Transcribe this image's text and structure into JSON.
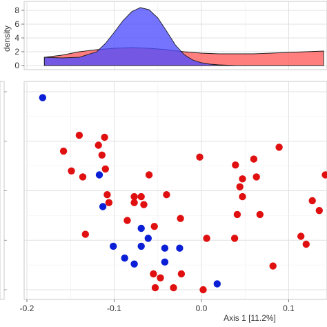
{
  "chart_data": [
    {
      "type": "area",
      "ylabel": "density",
      "y_ticks": [
        "0",
        "2",
        "4",
        "6",
        "8"
      ],
      "ylim": [
        0,
        9
      ],
      "xlim": [
        -0.23,
        0.14
      ],
      "grid": true,
      "series": [
        {
          "color": "#ff5a5a",
          "x": [
            -0.18,
            -0.16,
            -0.14,
            -0.12,
            -0.1,
            -0.08,
            -0.06,
            -0.04,
            -0.02,
            0.0,
            0.02,
            0.04,
            0.06,
            0.08,
            0.1,
            0.12,
            0.14
          ],
          "values": [
            1.2,
            1.5,
            2.0,
            2.3,
            2.5,
            2.6,
            2.5,
            2.3,
            2.0,
            1.8,
            1.7,
            1.7,
            1.7,
            1.8,
            1.9,
            2.0,
            2.1
          ]
        },
        {
          "color": "#4d4dff",
          "x": [
            -0.18,
            -0.16,
            -0.14,
            -0.12,
            -0.11,
            -0.1,
            -0.09,
            -0.08,
            -0.07,
            -0.06,
            -0.05,
            -0.04,
            -0.03,
            -0.02,
            -0.01,
            0.0,
            0.01,
            0.02,
            0.03,
            0.04
          ],
          "values": [
            1.2,
            1.1,
            1.2,
            2.0,
            3.2,
            4.8,
            6.5,
            7.8,
            8.4,
            8.1,
            6.9,
            5.0,
            3.0,
            1.6,
            0.8,
            0.4,
            0.2,
            0.1,
            0.05,
            0.0
          ]
        }
      ]
    },
    {
      "type": "scatter",
      "xlabel": "Axis 1 [11.2%]",
      "x_ticks": [
        "-0.2",
        "-0.1",
        "0.0",
        "0.1"
      ],
      "xlim": [
        -0.23,
        0.14
      ],
      "ylim": [
        0,
        1
      ],
      "grid": true,
      "series": [
        {
          "color": "#0b1fd6",
          "points": [
            [
              -0.182,
              0.97
            ],
            [
              -0.117,
              0.58
            ],
            [
              -0.113,
              0.42
            ],
            [
              -0.069,
              0.31
            ],
            [
              -0.101,
              0.22
            ],
            [
              -0.069,
              0.22
            ],
            [
              -0.061,
              0.26
            ],
            [
              -0.042,
              0.21
            ],
            [
              -0.025,
              0.21
            ],
            [
              -0.088,
              0.16
            ],
            [
              -0.077,
              0.13
            ],
            [
              -0.042,
              0.14
            ],
            [
              0.018,
              0.03
            ]
          ]
        },
        {
          "color": "#e01010",
          "points": [
            [
              -0.14,
              0.78
            ],
            [
              -0.111,
              0.77
            ],
            [
              -0.118,
              0.73
            ],
            [
              -0.158,
              0.7
            ],
            [
              -0.114,
              0.68
            ],
            [
              -0.149,
              0.6
            ],
            [
              -0.11,
              0.61
            ],
            [
              -0.136,
              0.57
            ],
            [
              -0.108,
              0.48
            ],
            [
              -0.077,
              0.47
            ],
            [
              -0.069,
              0.47
            ],
            [
              -0.106,
              0.44
            ],
            [
              -0.077,
              0.44
            ],
            [
              -0.066,
              0.43
            ],
            [
              -0.04,
              0.48
            ],
            [
              -0.06,
              0.58
            ],
            [
              -0.002,
              0.67
            ],
            [
              0.039,
              0.63
            ],
            [
              0.06,
              0.66
            ],
            [
              0.089,
              0.72
            ],
            [
              0.063,
              0.57
            ],
            [
              0.047,
              0.56
            ],
            [
              0.044,
              0.52
            ],
            [
              0.047,
              0.47
            ],
            [
              0.142,
              0.58
            ],
            [
              0.127,
              0.45
            ],
            [
              0.135,
              0.4
            ],
            [
              0.041,
              0.38
            ],
            [
              0.067,
              0.38
            ],
            [
              -0.133,
              0.28
            ],
            [
              -0.085,
              0.35
            ],
            [
              -0.054,
              0.32
            ],
            [
              -0.024,
              0.36
            ],
            [
              0.006,
              0.26
            ],
            [
              0.038,
              0.26
            ],
            [
              0.114,
              0.27
            ],
            [
              0.12,
              0.23
            ],
            [
              0.082,
              0.12
            ],
            [
              -0.055,
              0.08
            ],
            [
              -0.047,
              0.06
            ],
            [
              -0.023,
              0.08
            ],
            [
              -0.053,
              0.01
            ],
            [
              -0.032,
              0.01
            ],
            [
              0.002,
              0.0
            ]
          ]
        }
      ]
    }
  ]
}
